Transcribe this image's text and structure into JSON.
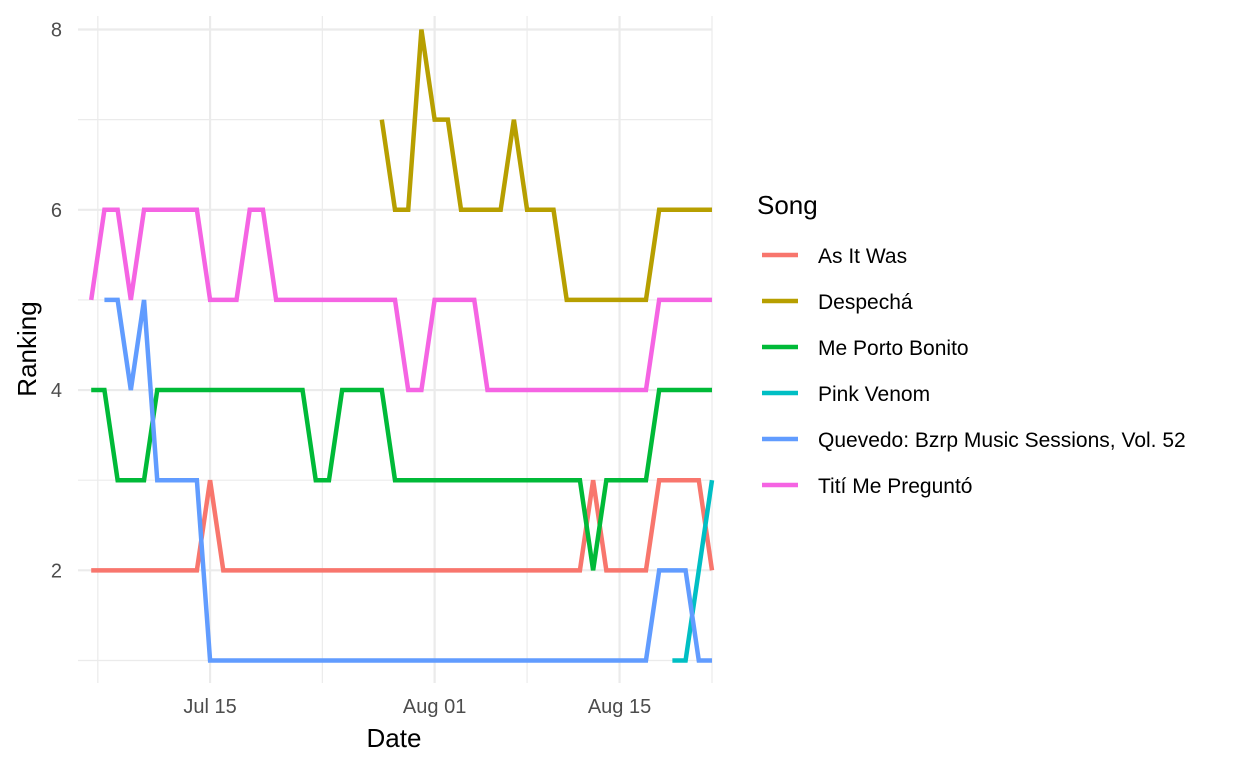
{
  "chart_data": {
    "type": "line",
    "xlabel": "Date",
    "ylabel": "Ranking",
    "x_ticks": [
      "Jul 15",
      "Aug 01",
      "Aug 15"
    ],
    "y_ticks": [
      2,
      4,
      6,
      8
    ],
    "ylim": [
      0.75,
      8.15
    ],
    "xlim": [
      "2022-07-05",
      "2022-08-22"
    ],
    "grid": true,
    "legend_title": "Song",
    "legend_position": "right",
    "x": [
      "2022-07-06",
      "2022-07-07",
      "2022-07-08",
      "2022-07-09",
      "2022-07-10",
      "2022-07-11",
      "2022-07-12",
      "2022-07-13",
      "2022-07-14",
      "2022-07-15",
      "2022-07-16",
      "2022-07-17",
      "2022-07-18",
      "2022-07-19",
      "2022-07-20",
      "2022-07-21",
      "2022-07-22",
      "2022-07-23",
      "2022-07-24",
      "2022-07-25",
      "2022-07-26",
      "2022-07-27",
      "2022-07-28",
      "2022-07-29",
      "2022-07-30",
      "2022-07-31",
      "2022-08-01",
      "2022-08-02",
      "2022-08-03",
      "2022-08-04",
      "2022-08-05",
      "2022-08-06",
      "2022-08-07",
      "2022-08-08",
      "2022-08-09",
      "2022-08-10",
      "2022-08-11",
      "2022-08-12",
      "2022-08-13",
      "2022-08-14",
      "2022-08-15",
      "2022-08-16",
      "2022-08-17",
      "2022-08-18",
      "2022-08-19",
      "2022-08-20",
      "2022-08-21",
      "2022-08-22"
    ],
    "series": [
      {
        "name": "As It Was",
        "color": "#F8766D",
        "values": [
          2,
          2,
          2,
          2,
          2,
          2,
          2,
          2,
          2,
          3,
          2,
          2,
          2,
          2,
          2,
          2,
          2,
          2,
          2,
          2,
          2,
          2,
          2,
          2,
          2,
          2,
          2,
          2,
          2,
          2,
          2,
          2,
          2,
          2,
          2,
          2,
          2,
          2,
          3,
          2,
          2,
          2,
          2,
          3,
          3,
          3,
          3,
          2
        ]
      },
      {
        "name": "Despechá",
        "color": "#B79F00",
        "values": [
          null,
          null,
          null,
          null,
          null,
          null,
          null,
          null,
          null,
          null,
          null,
          null,
          null,
          null,
          null,
          null,
          null,
          null,
          null,
          null,
          null,
          null,
          7,
          6,
          6,
          8,
          7,
          7,
          6,
          6,
          6,
          6,
          7,
          6,
          6,
          6,
          5,
          5,
          5,
          5,
          5,
          5,
          5,
          6,
          6,
          6,
          6,
          6
        ]
      },
      {
        "name": "Me Porto Bonito",
        "color": "#00BA38",
        "values": [
          4,
          4,
          3,
          3,
          3,
          4,
          4,
          4,
          4,
          4,
          4,
          4,
          4,
          4,
          4,
          4,
          4,
          3,
          3,
          4,
          4,
          4,
          4,
          3,
          3,
          3,
          3,
          3,
          3,
          3,
          3,
          3,
          3,
          3,
          3,
          3,
          3,
          3,
          2,
          3,
          3,
          3,
          3,
          4,
          4,
          4,
          4,
          4
        ]
      },
      {
        "name": "Pink Venom",
        "color": "#00BFC4",
        "values": [
          null,
          null,
          null,
          null,
          null,
          null,
          null,
          null,
          null,
          null,
          null,
          null,
          null,
          null,
          null,
          null,
          null,
          null,
          null,
          null,
          null,
          null,
          null,
          null,
          null,
          null,
          null,
          null,
          null,
          null,
          null,
          null,
          null,
          null,
          null,
          null,
          null,
          null,
          null,
          null,
          null,
          null,
          null,
          null,
          1,
          1,
          2,
          3
        ]
      },
      {
        "name": "Quevedo: Bzrp Music Sessions, Vol. 52",
        "color": "#619CFF",
        "values": [
          null,
          5,
          5,
          4,
          5,
          3,
          3,
          3,
          3,
          1,
          1,
          1,
          1,
          1,
          1,
          1,
          1,
          1,
          1,
          1,
          1,
          1,
          1,
          1,
          1,
          1,
          1,
          1,
          1,
          1,
          1,
          1,
          1,
          1,
          1,
          1,
          1,
          1,
          1,
          1,
          1,
          1,
          1,
          2,
          2,
          2,
          1,
          1
        ]
      },
      {
        "name": "Tití Me Preguntó",
        "color": "#F564E3",
        "values": [
          5,
          6,
          6,
          5,
          6,
          6,
          6,
          6,
          6,
          5,
          5,
          5,
          6,
          6,
          5,
          5,
          5,
          5,
          5,
          5,
          5,
          5,
          5,
          5,
          4,
          4,
          5,
          5,
          5,
          5,
          4,
          4,
          4,
          4,
          4,
          4,
          4,
          4,
          4,
          4,
          4,
          4,
          4,
          5,
          5,
          5,
          5,
          5
        ]
      }
    ]
  }
}
